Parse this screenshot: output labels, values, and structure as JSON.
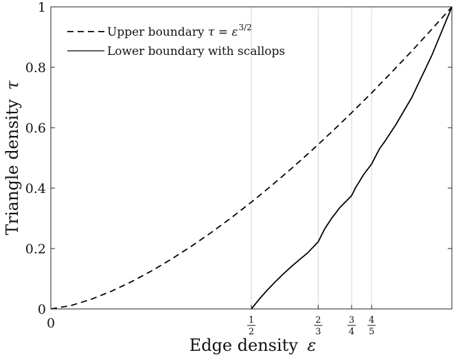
{
  "chart_data": {
    "type": "line",
    "title": "",
    "xlabel": {
      "text": "Edge density",
      "symbol": "ε"
    },
    "ylabel": {
      "text": "Triangle density",
      "symbol": "τ"
    },
    "xlim": [
      0,
      1
    ],
    "ylim": [
      0,
      1
    ],
    "grid": false,
    "legend_position": "top-left",
    "y_ticks": [
      {
        "value": 0,
        "label": "0"
      },
      {
        "value": 0.2,
        "label": "0.2"
      },
      {
        "value": 0.4,
        "label": "0.4"
      },
      {
        "value": 0.6,
        "label": "0.6"
      },
      {
        "value": 0.8,
        "label": "0.8"
      },
      {
        "value": 1,
        "label": "1"
      }
    ],
    "x_ticks": [
      {
        "value": 0,
        "label": "0"
      },
      {
        "value": 0.5,
        "numerator": "1",
        "denominator": "2"
      },
      {
        "value": 0.6667,
        "numerator": "2",
        "denominator": "3"
      },
      {
        "value": 0.75,
        "numerator": "3",
        "denominator": "4"
      },
      {
        "value": 0.8,
        "numerator": "4",
        "denominator": "5"
      }
    ],
    "reference_lines_x": [
      0.5,
      0.6667,
      0.75,
      0.8
    ],
    "series": [
      {
        "name": "Upper boundary",
        "formula": {
          "lhs": "τ = ε",
          "exp": "3/2"
        },
        "style": "dashed",
        "x": [
          0,
          0.05,
          0.1,
          0.15,
          0.2,
          0.25,
          0.3,
          0.35,
          0.4,
          0.45,
          0.5,
          0.55,
          0.6,
          0.65,
          0.7,
          0.75,
          0.8,
          0.85,
          0.9,
          0.95,
          1
        ],
        "y": [
          0,
          0.0112,
          0.0316,
          0.0581,
          0.0894,
          0.125,
          0.1643,
          0.2071,
          0.253,
          0.3019,
          0.3536,
          0.4079,
          0.4648,
          0.524,
          0.5857,
          0.6495,
          0.7155,
          0.7837,
          0.8538,
          0.926,
          1
        ]
      },
      {
        "name": "Lower boundary with scallops",
        "style": "solid",
        "x": [
          0.5,
          0.52,
          0.54,
          0.56,
          0.58,
          0.6,
          0.62,
          0.64,
          0.6667,
          0.6825,
          0.7,
          0.72,
          0.75,
          0.76,
          0.78,
          0.8,
          0.81,
          0.82,
          0.8333,
          0.86,
          0.9,
          0.95,
          1
        ],
        "y": [
          0,
          0.0329,
          0.0628,
          0.0904,
          0.1162,
          0.1404,
          0.1633,
          0.1851,
          0.2222,
          0.2641,
          0.2996,
          0.3346,
          0.375,
          0.4015,
          0.4449,
          0.48,
          0.5061,
          0.5309,
          0.5556,
          0.6094,
          0.7,
          0.8396,
          1
        ]
      }
    ]
  }
}
